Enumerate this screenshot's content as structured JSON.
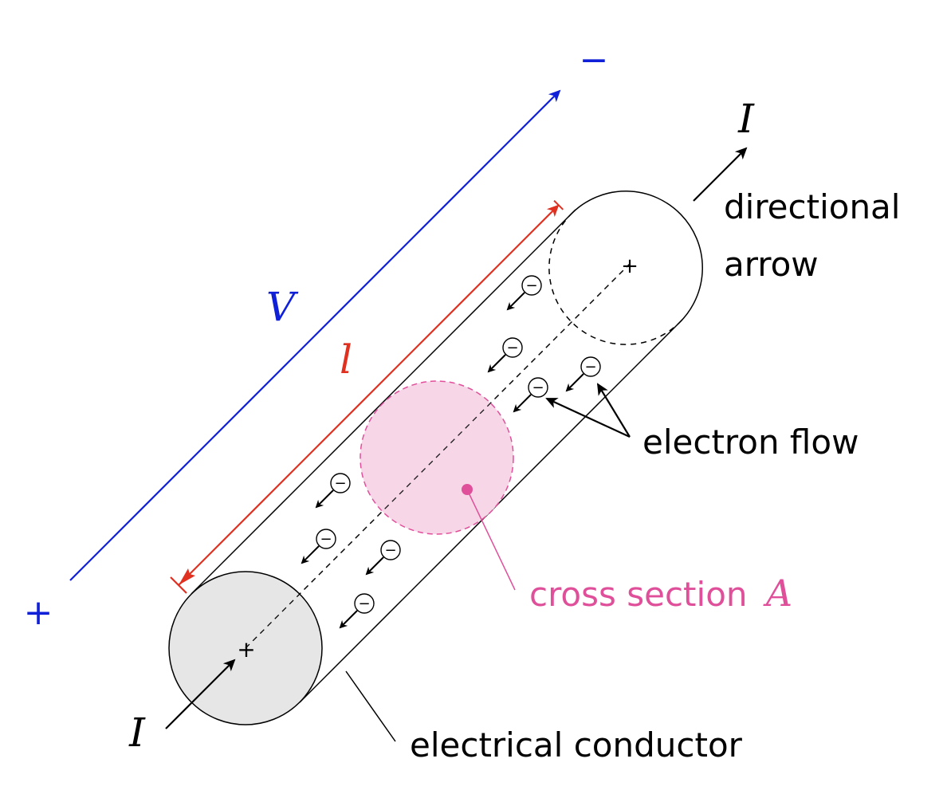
{
  "colors": {
    "voltage": "#1020d8",
    "length": "#e03020",
    "cross_section": "#e0509a",
    "cross_section_fill": "#f6d6e7",
    "end_fill": "#e6e6e6",
    "ink": "#000000"
  },
  "labels": {
    "plus_sign": "+",
    "minus_sign": "−",
    "voltage": "V",
    "length": "l",
    "current_top": "I",
    "current_bottom": "I",
    "directional_arrow_line1": "directional",
    "directional_arrow_line2": "arrow",
    "electron_flow": "electron flow",
    "cross_section_text": "cross section",
    "cross_section_symbol": "A",
    "electrical_conductor": "electrical conductor",
    "electron_symbol": "−",
    "center_mark": "+"
  },
  "icons": {
    "electron": "electron-icon",
    "arrow": "arrowhead"
  }
}
